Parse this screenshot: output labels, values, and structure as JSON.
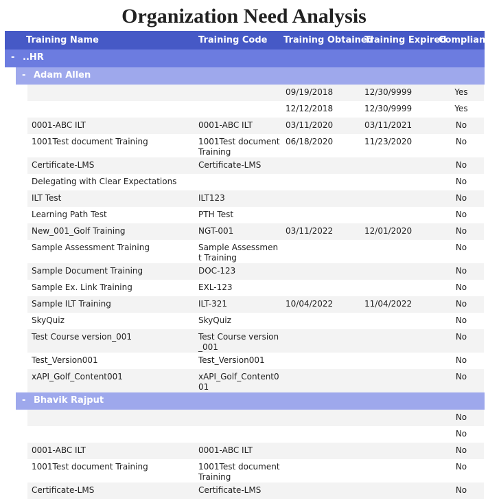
{
  "title": "Organization Need Analysis",
  "columns": {
    "name": "Training Name",
    "code": "Training Code",
    "obtained": "Training Obtained",
    "expired": "Training Expired",
    "compliant": "Compliant"
  },
  "groups": [
    {
      "toggle": "-",
      "label": "..HR",
      "people": [
        {
          "toggle": "-",
          "name": "Adam Allen",
          "rows": [
            {
              "obtained": "09/19/2018",
              "expired": "12/30/9999",
              "compliant": "Yes"
            },
            {
              "obtained": "12/12/2018",
              "expired": "12/30/9999",
              "compliant": "Yes"
            },
            {
              "name": "0001-ABC ILT",
              "code": "0001-ABC ILT",
              "obtained": "03/11/2020",
              "expired": "03/11/2021",
              "compliant": "No"
            },
            {
              "name": "1001Test document Training",
              "code": "1001Test document Training",
              "obtained": "06/18/2020",
              "expired": "11/23/2020",
              "compliant": "No"
            },
            {
              "name": "Certificate-LMS",
              "code": "Certificate-LMS",
              "compliant": "No"
            },
            {
              "name": "Delegating with Clear Expectations",
              "compliant": "No"
            },
            {
              "name": "ILT Test",
              "code": "ILT123",
              "compliant": "No"
            },
            {
              "name": "Learning Path Test",
              "code": "PTH Test",
              "compliant": "No"
            },
            {
              "name": "New_001_Golf Training",
              "code": "NGT-001",
              "obtained": "03/11/2022",
              "expired": "12/01/2020",
              "compliant": "No"
            },
            {
              "name": "Sample Assessment Training",
              "code": "Sample Assessment Training",
              "compliant": "No"
            },
            {
              "name": "Sample Document Training",
              "code": "DOC-123",
              "compliant": "No"
            },
            {
              "name": "Sample Ex. Link Training",
              "code": "EXL-123",
              "compliant": "No"
            },
            {
              "name": "Sample ILT Training",
              "code": "ILT-321",
              "obtained": "10/04/2022",
              "expired": "11/04/2022",
              "compliant": "No"
            },
            {
              "name": "SkyQuiz",
              "code": "SkyQuiz",
              "compliant": "No"
            },
            {
              "name": "Test Course version_001",
              "code": "Test Course version_001",
              "compliant": "No"
            },
            {
              "name": "Test_Version001",
              "code": "Test_Version001",
              "compliant": "No"
            },
            {
              "name": "xAPI_Golf_Content001",
              "code": "xAPI_Golf_Content001",
              "compliant": "No"
            }
          ]
        },
        {
          "toggle": "-",
          "name": "Bhavik Rajput",
          "rows": [
            {
              "compliant": "No"
            },
            {
              "compliant": "No"
            },
            {
              "name": "0001-ABC ILT",
              "code": "0001-ABC ILT",
              "compliant": "No"
            },
            {
              "name": "1001Test document Training",
              "code": "1001Test document Training",
              "compliant": "No"
            },
            {
              "name": "Certificate-LMS",
              "code": "Certificate-LMS",
              "compliant": "No"
            }
          ]
        }
      ]
    }
  ]
}
